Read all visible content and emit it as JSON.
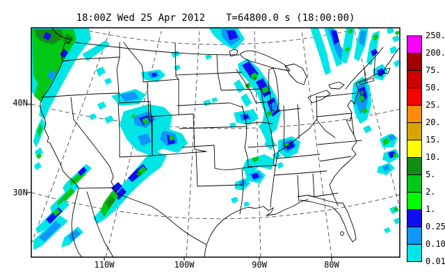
{
  "header": {
    "datetime": "18:00Z Wed 25 Apr 2012",
    "sim_time": "T=64800.0 s (18:00:00)"
  },
  "axes": {
    "lat": [
      "40N",
      "30N"
    ],
    "lon": [
      "110W",
      "100W",
      "90W",
      "80W"
    ]
  },
  "colorbar": {
    "labels": [
      "250.",
      "200.",
      "75.",
      "50.",
      "25.",
      "20.",
      "15.",
      "10.",
      "5.",
      "2.",
      "1.",
      "0.25",
      "0.10",
      "0.01"
    ],
    "colors": [
      "#ff00ff",
      "#a30000",
      "#cc0000",
      "#fa0000",
      "#ff8c0a",
      "#d7a500",
      "#ffff00",
      "#128c12",
      "#00c814",
      "#00ff00",
      "#0f0ff0",
      "#0f96ff",
      "#00e6e6"
    ]
  },
  "map_colors": {
    "light_rain": "#00e6e6",
    "moderate_rain": "#0f96ff",
    "heavy_rain": "#0f0ff0",
    "green_rain": "#00c814",
    "dark_green_rain": "#128c12",
    "bright_green_rain": "#00ff00"
  }
}
